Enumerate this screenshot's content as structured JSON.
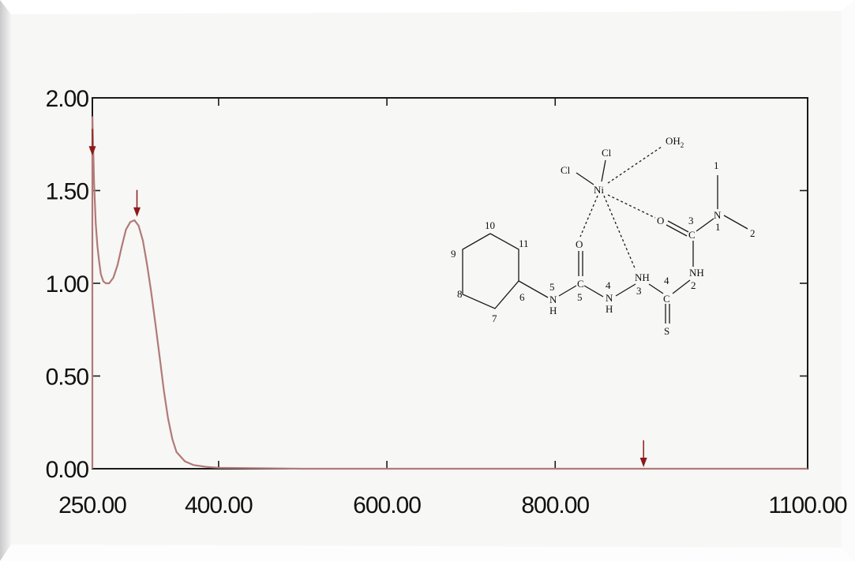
{
  "chart_data": {
    "type": "line",
    "x_ticks": [
      "250.00",
      "400.00",
      "600.00",
      "800.00",
      "1100.00"
    ],
    "y_ticks": [
      "0.00",
      "0.50",
      "1.00",
      "1.50",
      "2.00"
    ],
    "xlim": [
      250,
      1100
    ],
    "ylim": [
      0,
      2
    ],
    "grid": false,
    "series": [
      {
        "color": "#b07a78",
        "points": [
          [
            250,
            1.9
          ],
          [
            251,
            1.72
          ],
          [
            252,
            1.55
          ],
          [
            254,
            1.32
          ],
          [
            256,
            1.2
          ],
          [
            258,
            1.12
          ],
          [
            260,
            1.05
          ],
          [
            263,
            1.01
          ],
          [
            266,
            1.0
          ],
          [
            270,
            1.0
          ],
          [
            275,
            1.03
          ],
          [
            280,
            1.1
          ],
          [
            285,
            1.2
          ],
          [
            290,
            1.29
          ],
          [
            295,
            1.33
          ],
          [
            300,
            1.34
          ],
          [
            305,
            1.31
          ],
          [
            310,
            1.23
          ],
          [
            315,
            1.1
          ],
          [
            320,
            0.95
          ],
          [
            325,
            0.78
          ],
          [
            330,
            0.6
          ],
          [
            335,
            0.42
          ],
          [
            340,
            0.27
          ],
          [
            345,
            0.16
          ],
          [
            350,
            0.09
          ],
          [
            360,
            0.04
          ],
          [
            370,
            0.02
          ],
          [
            385,
            0.01
          ],
          [
            400,
            0.005
          ],
          [
            500,
            0.0
          ],
          [
            1100,
            0.0
          ]
        ]
      }
    ],
    "markers": [
      {
        "x": 250,
        "y": 1.68
      },
      {
        "x": 303,
        "y": 1.35
      },
      {
        "x": 905,
        "y": 0.0
      }
    ],
    "marker_color": "#8b1a1a"
  },
  "molecule": {
    "atoms": {
      "ni": "Ni",
      "cl_top": "Cl",
      "cl_left": "Cl",
      "oh2_o": "OH",
      "oh2_sub": "2",
      "o_left": "O",
      "o_right": "O",
      "c5": "C",
      "c3": "C",
      "c4": "C",
      "n5_n": "N",
      "n5_h": "H",
      "n4_n": "N",
      "n4_h": "H",
      "nh3": "NH",
      "nh2": "NH",
      "n1": "N",
      "s": "S"
    },
    "numbers": {
      "n10": "10",
      "n11": "11",
      "n9": "9",
      "n8": "8",
      "n7": "7",
      "n6": "6",
      "n5": "5",
      "n5b": "5",
      "n4": "4",
      "n4b": "4",
      "n3": "3",
      "n2": "2",
      "n3c": "3",
      "n1": "1",
      "n1b": "1",
      "n2b": "2"
    }
  }
}
